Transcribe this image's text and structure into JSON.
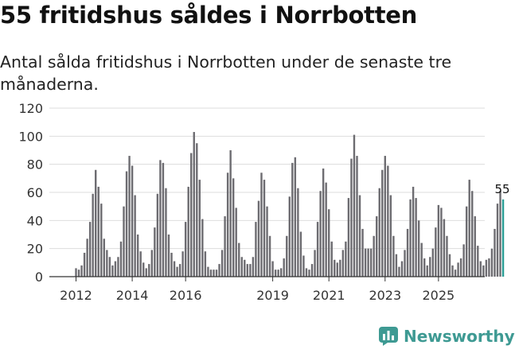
{
  "header": {
    "title": "55 fritidshus såldes i Norrbotten",
    "subtitle": "Antal sålda fritidshus i Norrbotten under de senaste tre månaderna."
  },
  "brand": {
    "name": "Newsworthy"
  },
  "colors": {
    "bar": "#6d6c71",
    "highlight": "#2a9d95",
    "grid": "#dddddd",
    "axis": "#333333",
    "brand": "#3e9a93"
  },
  "chart_data": {
    "type": "bar",
    "title": "55 fritidshus såldes i Norrbotten",
    "subtitle": "Antal sålda fritidshus i Norrbotten under de senaste tre månaderna.",
    "xlabel": "",
    "ylabel": "",
    "ylim": [
      0,
      120
    ],
    "yticks": [
      0,
      20,
      40,
      60,
      80,
      100,
      120
    ],
    "xticks": [
      {
        "label": "2012",
        "index": 0
      },
      {
        "label": "2014",
        "index": 20
      },
      {
        "label": "2016",
        "index": 39
      },
      {
        "label": "2019",
        "index": 70
      },
      {
        "label": "2021",
        "index": 90
      },
      {
        "label": "2023",
        "index": 110
      },
      {
        "label": "2025",
        "index": 129
      }
    ],
    "highlight_label": "55",
    "values": [
      6,
      5,
      8,
      17,
      27,
      39,
      59,
      76,
      64,
      52,
      27,
      19,
      14,
      8,
      11,
      14,
      25,
      50,
      75,
      86,
      79,
      58,
      30,
      18,
      10,
      6,
      9,
      19,
      35,
      59,
      83,
      81,
      63,
      30,
      17,
      11,
      7,
      9,
      18,
      39,
      64,
      88,
      103,
      95,
      69,
      41,
      18,
      7,
      5,
      5,
      5,
      9,
      19,
      43,
      74,
      90,
      70,
      49,
      24,
      14,
      12,
      9,
      9,
      14,
      39,
      54,
      74,
      69,
      50,
      29,
      11,
      5,
      5,
      6,
      13,
      29,
      57,
      81,
      85,
      63,
      32,
      15,
      6,
      5,
      9,
      19,
      39,
      61,
      77,
      67,
      48,
      25,
      12,
      10,
      12,
      19,
      25,
      56,
      84,
      101,
      86,
      58,
      34,
      20,
      20,
      20,
      29,
      43,
      63,
      76,
      86,
      79,
      58,
      29,
      16,
      7,
      11,
      19,
      34,
      55,
      64,
      56,
      40,
      24,
      13,
      8,
      14,
      20,
      35,
      51,
      49,
      41,
      29,
      16,
      8,
      5,
      10,
      13,
      23,
      50,
      69,
      61,
      43,
      22,
      11,
      8,
      12,
      13,
      20,
      34,
      52,
      61,
      55
    ]
  }
}
